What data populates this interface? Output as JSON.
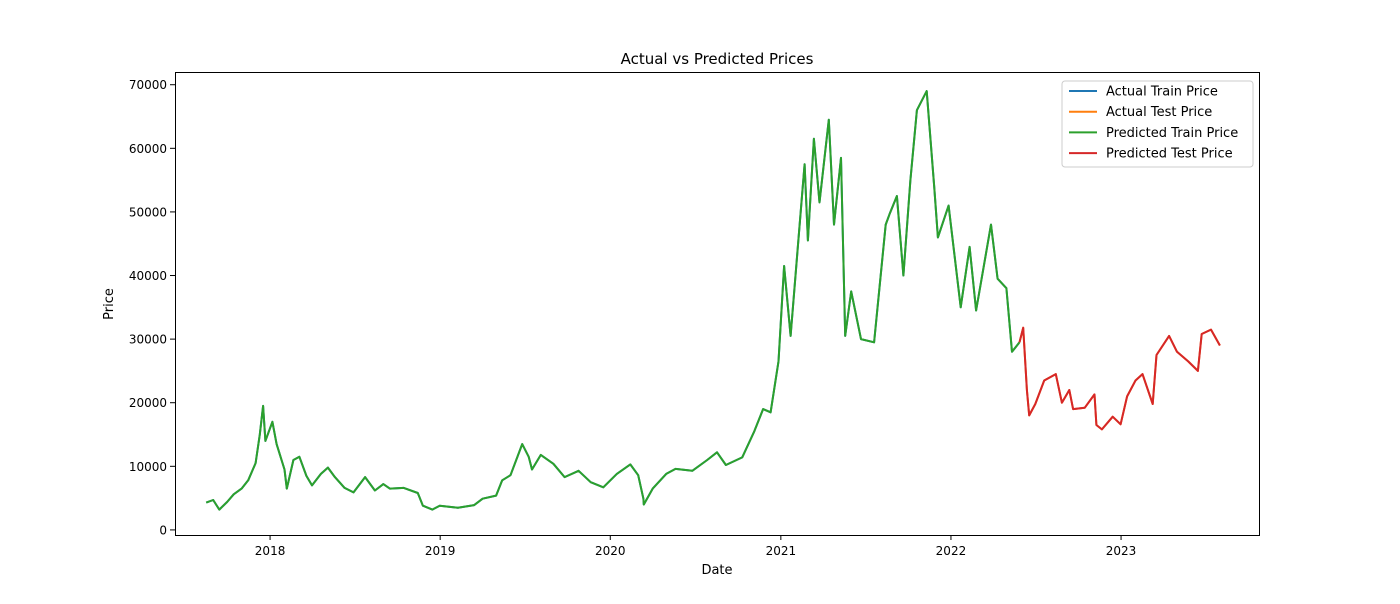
{
  "chart_data": {
    "type": "line",
    "title": "Actual vs Predicted Prices",
    "xlabel": "Date",
    "ylabel": "Price",
    "xlim": [
      "2017-06-11",
      "2023-10-24"
    ],
    "ylim": [
      -800,
      72000
    ],
    "x_ticks": [
      "2018-01-01",
      "2019-01-01",
      "2020-01-01",
      "2021-01-01",
      "2022-01-01",
      "2023-01-01"
    ],
    "x_tick_labels": [
      "2018",
      "2019",
      "2020",
      "2021",
      "2022",
      "2023"
    ],
    "y_ticks": [
      0,
      10000,
      20000,
      30000,
      40000,
      50000,
      60000,
      70000
    ],
    "y_tick_labels": [
      "0",
      "10000",
      "20000",
      "30000",
      "40000",
      "50000",
      "60000",
      "70000"
    ],
    "grid": false,
    "legend_position": "top-right",
    "series": [
      {
        "name": "Actual Train Price",
        "color": "#1f77b4",
        "points": [
          [
            "2017-08-17",
            4300
          ],
          [
            "2017-09-01",
            4700
          ],
          [
            "2017-09-14",
            3200
          ],
          [
            "2017-10-01",
            4400
          ],
          [
            "2017-10-15",
            5600
          ],
          [
            "2017-11-01",
            6500
          ],
          [
            "2017-11-15",
            7800
          ],
          [
            "2017-12-01",
            10500
          ],
          [
            "2017-12-10",
            15000
          ],
          [
            "2017-12-17",
            19500
          ],
          [
            "2017-12-22",
            14000
          ],
          [
            "2018-01-06",
            17000
          ],
          [
            "2018-01-15",
            13500
          ],
          [
            "2018-02-01",
            9500
          ],
          [
            "2018-02-06",
            6500
          ],
          [
            "2018-02-20",
            11000
          ],
          [
            "2018-03-05",
            11500
          ],
          [
            "2018-03-20",
            8500
          ],
          [
            "2018-04-01",
            7000
          ],
          [
            "2018-04-20",
            8800
          ],
          [
            "2018-05-05",
            9800
          ],
          [
            "2018-05-20",
            8300
          ],
          [
            "2018-06-10",
            6600
          ],
          [
            "2018-06-29",
            5900
          ],
          [
            "2018-07-24",
            8300
          ],
          [
            "2018-08-14",
            6200
          ],
          [
            "2018-09-01",
            7200
          ],
          [
            "2018-09-15",
            6500
          ],
          [
            "2018-10-15",
            6600
          ],
          [
            "2018-11-14",
            5800
          ],
          [
            "2018-11-25",
            3800
          ],
          [
            "2018-12-15",
            3200
          ],
          [
            "2018-12-31",
            3800
          ],
          [
            "2019-02-08",
            3500
          ],
          [
            "2019-03-15",
            3900
          ],
          [
            "2019-04-02",
            4900
          ],
          [
            "2019-05-01",
            5400
          ],
          [
            "2019-05-14",
            7800
          ],
          [
            "2019-06-01",
            8600
          ],
          [
            "2019-06-26",
            13500
          ],
          [
            "2019-07-10",
            11500
          ],
          [
            "2019-07-17",
            9500
          ],
          [
            "2019-08-05",
            11800
          ],
          [
            "2019-09-01",
            10400
          ],
          [
            "2019-09-25",
            8300
          ],
          [
            "2019-10-25",
            9300
          ],
          [
            "2019-11-20",
            7500
          ],
          [
            "2019-12-17",
            6700
          ],
          [
            "2020-01-15",
            8800
          ],
          [
            "2020-02-13",
            10300
          ],
          [
            "2020-03-01",
            8600
          ],
          [
            "2020-03-12",
            4900
          ],
          [
            "2020-03-13",
            4000
          ],
          [
            "2020-04-01",
            6500
          ],
          [
            "2020-04-30",
            8800
          ],
          [
            "2020-05-20",
            9600
          ],
          [
            "2020-06-25",
            9300
          ],
          [
            "2020-07-27",
            11000
          ],
          [
            "2020-08-17",
            12200
          ],
          [
            "2020-09-05",
            10200
          ],
          [
            "2020-10-10",
            11400
          ],
          [
            "2020-11-05",
            15500
          ],
          [
            "2020-11-24",
            19000
          ],
          [
            "2020-12-10",
            18500
          ],
          [
            "2020-12-27",
            26500
          ],
          [
            "2021-01-08",
            41500
          ],
          [
            "2021-01-22",
            30500
          ],
          [
            "2021-02-08",
            46000
          ],
          [
            "2021-02-21",
            57500
          ],
          [
            "2021-02-28",
            45500
          ],
          [
            "2021-03-13",
            61500
          ],
          [
            "2021-03-25",
            51500
          ],
          [
            "2021-04-14",
            64500
          ],
          [
            "2021-04-25",
            48000
          ],
          [
            "2021-05-10",
            58500
          ],
          [
            "2021-05-19",
            30500
          ],
          [
            "2021-06-01",
            37500
          ],
          [
            "2021-06-22",
            30000
          ],
          [
            "2021-07-20",
            29500
          ],
          [
            "2021-08-14",
            48000
          ],
          [
            "2021-08-23",
            49800
          ],
          [
            "2021-09-07",
            52500
          ],
          [
            "2021-09-21",
            40000
          ],
          [
            "2021-10-06",
            55000
          ],
          [
            "2021-10-20",
            66000
          ],
          [
            "2021-11-10",
            69000
          ],
          [
            "2021-11-26",
            54000
          ],
          [
            "2021-12-04",
            46000
          ],
          [
            "2021-12-27",
            51000
          ],
          [
            "2022-01-22",
            35000
          ],
          [
            "2022-02-10",
            44500
          ],
          [
            "2022-02-24",
            34500
          ],
          [
            "2022-03-28",
            48000
          ],
          [
            "2022-04-11",
            39500
          ],
          [
            "2022-04-30",
            38000
          ],
          [
            "2022-05-12",
            28000
          ],
          [
            "2022-05-28",
            29500
          ]
        ]
      },
      {
        "name": "Actual Test Price",
        "color": "#ff7f0e",
        "points": [
          [
            "2022-05-28",
            29500
          ],
          [
            "2022-06-05",
            31800
          ],
          [
            "2022-06-13",
            22000
          ],
          [
            "2022-06-18",
            18000
          ],
          [
            "2022-07-01",
            19800
          ],
          [
            "2022-07-20",
            23500
          ],
          [
            "2022-08-14",
            24500
          ],
          [
            "2022-08-27",
            20000
          ],
          [
            "2022-09-12",
            22000
          ],
          [
            "2022-09-20",
            19000
          ],
          [
            "2022-10-15",
            19200
          ],
          [
            "2022-11-05",
            21300
          ],
          [
            "2022-11-09",
            16500
          ],
          [
            "2022-11-21",
            15800
          ],
          [
            "2022-12-14",
            17800
          ],
          [
            "2022-12-31",
            16600
          ],
          [
            "2023-01-14",
            21000
          ],
          [
            "2023-02-01",
            23500
          ],
          [
            "2023-02-16",
            24500
          ],
          [
            "2023-03-10",
            19800
          ],
          [
            "2023-03-18",
            27500
          ],
          [
            "2023-04-14",
            30500
          ],
          [
            "2023-05-01",
            28000
          ],
          [
            "2023-05-25",
            26500
          ],
          [
            "2023-06-15",
            25000
          ],
          [
            "2023-06-23",
            30800
          ],
          [
            "2023-07-13",
            31500
          ],
          [
            "2023-08-01",
            29000
          ]
        ]
      },
      {
        "name": "Predicted Train Price",
        "color": "#2ca02c",
        "points": [
          [
            "2017-08-17",
            4300
          ],
          [
            "2017-09-01",
            4700
          ],
          [
            "2017-09-14",
            3200
          ],
          [
            "2017-10-01",
            4400
          ],
          [
            "2017-10-15",
            5600
          ],
          [
            "2017-11-01",
            6500
          ],
          [
            "2017-11-15",
            7800
          ],
          [
            "2017-12-01",
            10500
          ],
          [
            "2017-12-10",
            15000
          ],
          [
            "2017-12-17",
            19500
          ],
          [
            "2017-12-22",
            14000
          ],
          [
            "2018-01-06",
            17000
          ],
          [
            "2018-01-15",
            13500
          ],
          [
            "2018-02-01",
            9500
          ],
          [
            "2018-02-06",
            6500
          ],
          [
            "2018-02-20",
            11000
          ],
          [
            "2018-03-05",
            11500
          ],
          [
            "2018-03-20",
            8500
          ],
          [
            "2018-04-01",
            7000
          ],
          [
            "2018-04-20",
            8800
          ],
          [
            "2018-05-05",
            9800
          ],
          [
            "2018-05-20",
            8300
          ],
          [
            "2018-06-10",
            6600
          ],
          [
            "2018-06-29",
            5900
          ],
          [
            "2018-07-24",
            8300
          ],
          [
            "2018-08-14",
            6200
          ],
          [
            "2018-09-01",
            7200
          ],
          [
            "2018-09-15",
            6500
          ],
          [
            "2018-10-15",
            6600
          ],
          [
            "2018-11-14",
            5800
          ],
          [
            "2018-11-25",
            3800
          ],
          [
            "2018-12-15",
            3200
          ],
          [
            "2018-12-31",
            3800
          ],
          [
            "2019-02-08",
            3500
          ],
          [
            "2019-03-15",
            3900
          ],
          [
            "2019-04-02",
            4900
          ],
          [
            "2019-05-01",
            5400
          ],
          [
            "2019-05-14",
            7800
          ],
          [
            "2019-06-01",
            8600
          ],
          [
            "2019-06-26",
            13500
          ],
          [
            "2019-07-10",
            11500
          ],
          [
            "2019-07-17",
            9500
          ],
          [
            "2019-08-05",
            11800
          ],
          [
            "2019-09-01",
            10400
          ],
          [
            "2019-09-25",
            8300
          ],
          [
            "2019-10-25",
            9300
          ],
          [
            "2019-11-20",
            7500
          ],
          [
            "2019-12-17",
            6700
          ],
          [
            "2020-01-15",
            8800
          ],
          [
            "2020-02-13",
            10300
          ],
          [
            "2020-03-01",
            8600
          ],
          [
            "2020-03-12",
            4900
          ],
          [
            "2020-03-13",
            4000
          ],
          [
            "2020-04-01",
            6500
          ],
          [
            "2020-04-30",
            8800
          ],
          [
            "2020-05-20",
            9600
          ],
          [
            "2020-06-25",
            9300
          ],
          [
            "2020-07-27",
            11000
          ],
          [
            "2020-08-17",
            12200
          ],
          [
            "2020-09-05",
            10200
          ],
          [
            "2020-10-10",
            11400
          ],
          [
            "2020-11-05",
            15500
          ],
          [
            "2020-11-24",
            19000
          ],
          [
            "2020-12-10",
            18500
          ],
          [
            "2020-12-27",
            26500
          ],
          [
            "2021-01-08",
            41500
          ],
          [
            "2021-01-22",
            30500
          ],
          [
            "2021-02-08",
            46000
          ],
          [
            "2021-02-21",
            57500
          ],
          [
            "2021-02-28",
            45500
          ],
          [
            "2021-03-13",
            61500
          ],
          [
            "2021-03-25",
            51500
          ],
          [
            "2021-04-14",
            64500
          ],
          [
            "2021-04-25",
            48000
          ],
          [
            "2021-05-10",
            58500
          ],
          [
            "2021-05-19",
            30500
          ],
          [
            "2021-06-01",
            37500
          ],
          [
            "2021-06-22",
            30000
          ],
          [
            "2021-07-20",
            29500
          ],
          [
            "2021-08-14",
            48000
          ],
          [
            "2021-08-23",
            49800
          ],
          [
            "2021-09-07",
            52500
          ],
          [
            "2021-09-21",
            40000
          ],
          [
            "2021-10-06",
            55000
          ],
          [
            "2021-10-20",
            66000
          ],
          [
            "2021-11-10",
            69000
          ],
          [
            "2021-11-26",
            54000
          ],
          [
            "2021-12-04",
            46000
          ],
          [
            "2021-12-27",
            51000
          ],
          [
            "2022-01-22",
            35000
          ],
          [
            "2022-02-10",
            44500
          ],
          [
            "2022-02-24",
            34500
          ],
          [
            "2022-03-28",
            48000
          ],
          [
            "2022-04-11",
            39500
          ],
          [
            "2022-04-30",
            38000
          ],
          [
            "2022-05-12",
            28000
          ],
          [
            "2022-05-28",
            29500
          ]
        ]
      },
      {
        "name": "Predicted Test Price",
        "color": "#d62728",
        "points": [
          [
            "2022-05-28",
            29500
          ],
          [
            "2022-06-05",
            31800
          ],
          [
            "2022-06-13",
            22000
          ],
          [
            "2022-06-18",
            18000
          ],
          [
            "2022-07-01",
            19800
          ],
          [
            "2022-07-20",
            23500
          ],
          [
            "2022-08-14",
            24500
          ],
          [
            "2022-08-27",
            20000
          ],
          [
            "2022-09-12",
            22000
          ],
          [
            "2022-09-20",
            19000
          ],
          [
            "2022-10-15",
            19200
          ],
          [
            "2022-11-05",
            21300
          ],
          [
            "2022-11-09",
            16500
          ],
          [
            "2022-11-21",
            15800
          ],
          [
            "2022-12-14",
            17800
          ],
          [
            "2022-12-31",
            16600
          ],
          [
            "2023-01-14",
            21000
          ],
          [
            "2023-02-01",
            23500
          ],
          [
            "2023-02-16",
            24500
          ],
          [
            "2023-03-10",
            19800
          ],
          [
            "2023-03-18",
            27500
          ],
          [
            "2023-04-14",
            30500
          ],
          [
            "2023-05-01",
            28000
          ],
          [
            "2023-05-25",
            26500
          ],
          [
            "2023-06-15",
            25000
          ],
          [
            "2023-06-23",
            30800
          ],
          [
            "2023-07-13",
            31500
          ],
          [
            "2023-08-01",
            29000
          ]
        ]
      }
    ]
  }
}
